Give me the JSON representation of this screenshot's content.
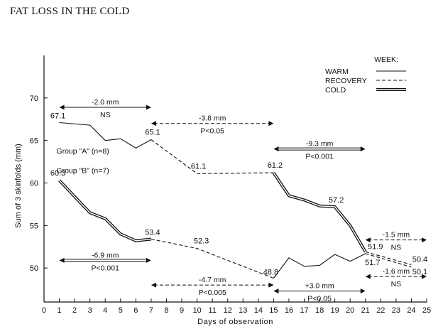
{
  "page_title": "FAT LOSS IN THE COLD",
  "chart_data": {
    "type": "line",
    "title": "",
    "xlabel": "Days of observation",
    "ylabel": "Sum of 3 skinfolds (mm)",
    "xlim": [
      0,
      25
    ],
    "ylim": [
      46,
      75
    ],
    "x_ticks": [
      0,
      1,
      2,
      3,
      4,
      5,
      6,
      7,
      8,
      9,
      10,
      11,
      12,
      13,
      14,
      15,
      16,
      17,
      18,
      19,
      20,
      21,
      22,
      23,
      24,
      25
    ],
    "y_ticks": [
      50,
      55,
      60,
      65,
      70
    ],
    "grid": false,
    "legend": {
      "title": "WEEK:",
      "entries": [
        {
          "label": "WARM",
          "style": "solid"
        },
        {
          "label": "RECOVERY",
          "style": "dashed"
        },
        {
          "label": "COLD",
          "style": "double"
        }
      ]
    },
    "series": [
      {
        "name": "Group \"A\" (n=8)",
        "segments": [
          {
            "style": "solid",
            "points": [
              [
                1,
                67.1
              ],
              [
                3,
                66.8
              ],
              [
                4,
                65.0
              ],
              [
                5,
                65.2
              ],
              [
                6,
                64.1
              ],
              [
                7,
                65.1
              ]
            ]
          },
          {
            "style": "dashed",
            "points": [
              [
                7,
                65.1
              ],
              [
                10,
                61.1
              ],
              [
                15,
                61.2
              ]
            ]
          },
          {
            "style": "double",
            "points": [
              [
                15,
                61.2
              ],
              [
                16,
                58.5
              ],
              [
                17,
                58.0
              ],
              [
                18,
                57.3
              ],
              [
                19,
                57.2
              ],
              [
                20,
                55.0
              ],
              [
                21,
                51.9
              ]
            ]
          },
          {
            "style": "dashed",
            "points": [
              [
                21,
                51.9
              ],
              [
                24,
                50.4
              ]
            ]
          }
        ]
      },
      {
        "name": "Group \"B\" (n=7)",
        "segments": [
          {
            "style": "double",
            "points": [
              [
                1,
                60.3
              ],
              [
                3,
                56.5
              ],
              [
                4,
                55.8
              ],
              [
                5,
                54.0
              ],
              [
                6,
                53.2
              ],
              [
                7,
                53.4
              ]
            ]
          },
          {
            "style": "dashed",
            "points": [
              [
                7,
                53.4
              ],
              [
                10,
                52.3
              ],
              [
                15,
                48.8
              ]
            ]
          },
          {
            "style": "solid",
            "points": [
              [
                15,
                48.8
              ],
              [
                16,
                51.2
              ],
              [
                17,
                50.2
              ],
              [
                18,
                50.3
              ],
              [
                19,
                51.6
              ],
              [
                20,
                50.8
              ],
              [
                21,
                51.7
              ]
            ]
          },
          {
            "style": "dashed",
            "points": [
              [
                21,
                51.7
              ],
              [
                24,
                50.1
              ]
            ]
          }
        ]
      }
    ],
    "data_labels": [
      {
        "text": "67.1",
        "x": 1,
        "y": 67.1
      },
      {
        "text": "65.1",
        "x": 7,
        "y": 65.1
      },
      {
        "text": "61.1",
        "x": 10,
        "y": 61.1
      },
      {
        "text": "61.2",
        "x": 15,
        "y": 61.2
      },
      {
        "text": "57.2",
        "x": 19,
        "y": 57.2
      },
      {
        "text": "51.9",
        "x": 21,
        "y": 51.9
      },
      {
        "text": "50.4",
        "x": 24,
        "y": 50.4
      },
      {
        "text": "60.3",
        "x": 1,
        "y": 60.3
      },
      {
        "text": "53.4",
        "x": 7,
        "y": 53.4
      },
      {
        "text": "52.3",
        "x": 10,
        "y": 52.3
      },
      {
        "text": "48.8",
        "x": 15,
        "y": 48.8
      },
      {
        "text": "51.7",
        "x": 21,
        "y": 51.7
      },
      {
        "text": "50.1",
        "x": 24,
        "y": 50.1
      }
    ],
    "group_labels": [
      {
        "text": "Group \"A\" (n=8)",
        "x": 2.2,
        "y": 63.8
      },
      {
        "text": "Group \"B\" (n=7)",
        "x": 2.2,
        "y": 61.5
      }
    ],
    "annotations": [
      {
        "from": 1,
        "to": 7,
        "y": 68.9,
        "style": "solid",
        "text": "-2.0 mm",
        "note": "NS"
      },
      {
        "from": 7,
        "to": 15,
        "y": 67.0,
        "style": "dashed",
        "text": "-3.8 mm",
        "note": "P<0.05"
      },
      {
        "from": 15,
        "to": 21,
        "y": 64.0,
        "style": "double",
        "text": "-9.3 mm",
        "note": "P<0.001"
      },
      {
        "from": 1,
        "to": 7,
        "y": 50.9,
        "style": "double",
        "text": "-6.9 mm",
        "note": "P<0.001"
      },
      {
        "from": 7,
        "to": 15,
        "y": 48.0,
        "style": "dashed",
        "text": "-4.7 mm",
        "note": "P<0.005"
      },
      {
        "from": 15,
        "to": 21,
        "y": 47.3,
        "style": "solid",
        "text": "+3.0 mm",
        "note": "P<0.05"
      },
      {
        "from": 21,
        "to": 25,
        "y": 53.3,
        "style": "dashed",
        "text": "-1.5 mm",
        "note": "NS"
      },
      {
        "from": 21,
        "to": 25,
        "y": 49.0,
        "style": "dashed",
        "text": "-1.6 mm",
        "note": "NS"
      }
    ]
  }
}
